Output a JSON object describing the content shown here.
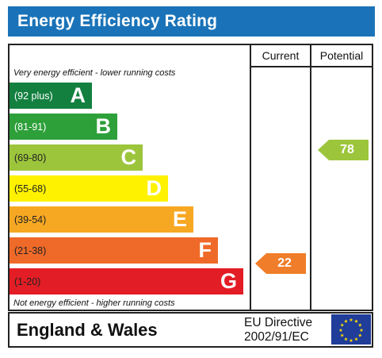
{
  "title": "Energy Efficiency Rating",
  "columns": {
    "current": "Current",
    "potential": "Potential"
  },
  "top_note": "Very energy efficient - lower running costs",
  "bottom_note": "Not energy efficient - higher running costs",
  "bands": [
    {
      "range": "(92 plus)",
      "letter": "A",
      "color": "#138040"
    },
    {
      "range": "(81-91)",
      "letter": "B",
      "color": "#2ea03a"
    },
    {
      "range": "(69-80)",
      "letter": "C",
      "color": "#9cc53c"
    },
    {
      "range": "(55-68)",
      "letter": "D",
      "color": "#fff200"
    },
    {
      "range": "(39-54)",
      "letter": "E",
      "color": "#f7a823"
    },
    {
      "range": "(21-38)",
      "letter": "F",
      "color": "#ef6a29"
    },
    {
      "range": "(1-20)",
      "letter": "G",
      "color": "#e31d25"
    }
  ],
  "current": {
    "value": "22",
    "band": "F",
    "color": "#ef7d29"
  },
  "potential": {
    "value": "78",
    "band": "C",
    "color": "#9cc53c"
  },
  "footer": {
    "region": "England & Wales",
    "directive_line1": "EU Directive",
    "directive_line2": "2002/91/EC"
  },
  "title_bar_color": "#1a73b8",
  "eu_flag_icon": "eu-flag-icon"
}
